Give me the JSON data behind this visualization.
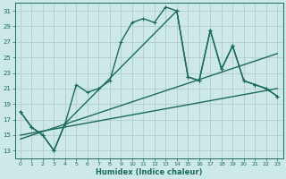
{
  "xlabel": "Humidex (Indice chaleur)",
  "bg_color": "#cde8e8",
  "line_color": "#1a6b5a",
  "grid_color": "#b8d8d8",
  "xlim": [
    -0.5,
    23.5
  ],
  "ylim": [
    12,
    32
  ],
  "yticks": [
    13,
    15,
    17,
    19,
    21,
    23,
    25,
    27,
    29,
    31
  ],
  "xticks": [
    0,
    1,
    2,
    3,
    4,
    5,
    6,
    7,
    8,
    9,
    10,
    11,
    12,
    13,
    14,
    15,
    16,
    17,
    18,
    19,
    20,
    21,
    22,
    23
  ],
  "series1_x": [
    0,
    1,
    2,
    3,
    4,
    5,
    6,
    7,
    8,
    9,
    10,
    11,
    12,
    13,
    14,
    15,
    16,
    17,
    18,
    19,
    20,
    21,
    22,
    23
  ],
  "series1_y": [
    18.0,
    16.0,
    15.0,
    13.0,
    16.5,
    21.5,
    20.5,
    21.0,
    22.0,
    27.0,
    29.5,
    30.0,
    29.5,
    31.5,
    31.0,
    22.5,
    22.0,
    28.5,
    23.5,
    26.5,
    22.0,
    21.5,
    21.0,
    20.0
  ],
  "series2_x": [
    0,
    1,
    2,
    3,
    4,
    14,
    15,
    16,
    17,
    18,
    19,
    20,
    21,
    22,
    23
  ],
  "series2_y": [
    18.0,
    16.0,
    15.0,
    13.0,
    16.5,
    31.0,
    22.5,
    22.0,
    28.5,
    23.5,
    26.5,
    22.0,
    21.5,
    21.0,
    20.0
  ],
  "trend1_x": [
    0,
    23
  ],
  "trend1_y": [
    15.0,
    21.0
  ],
  "trend2_x": [
    0,
    23
  ],
  "trend2_y": [
    14.5,
    25.5
  ],
  "linewidth": 1.0,
  "markersize": 2.5
}
